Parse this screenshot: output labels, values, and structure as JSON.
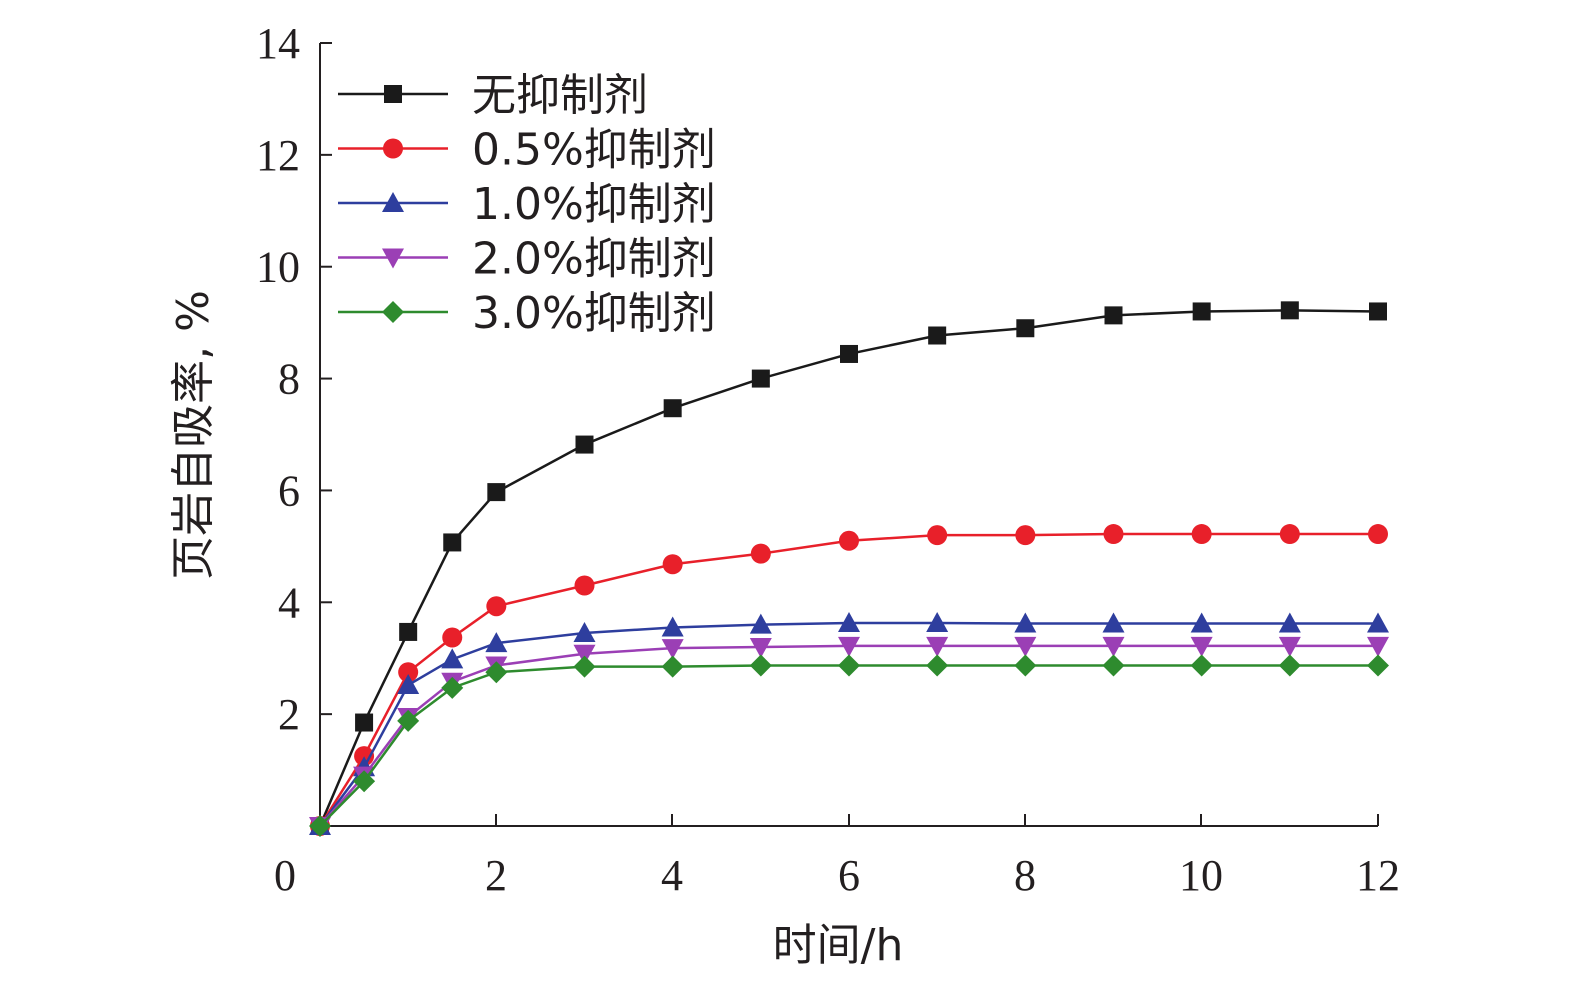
{
  "chart_data": {
    "type": "line",
    "title": "",
    "xlabel": "时间/h",
    "ylabel": "页岩自吸率, %",
    "xlim": [
      0,
      12
    ],
    "ylim": [
      0,
      14
    ],
    "x_ticks": [
      "0",
      "2",
      "4",
      "6",
      "8",
      "10",
      "12"
    ],
    "y_ticks": [
      "2",
      "4",
      "6",
      "8",
      "10",
      "12",
      "14"
    ],
    "grid": false,
    "legend_position": "top-left",
    "x": [
      0.4,
      0.9,
      1.4,
      1.9,
      2.4,
      3.4,
      4.4,
      5.4,
      6.4,
      7.4,
      8.4,
      9.4,
      10.4,
      11.4,
      12.4
    ],
    "x_values": [
      0,
      0.5,
      1,
      1.5,
      2,
      3,
      4,
      5,
      6,
      7,
      8,
      9,
      10,
      11,
      12
    ],
    "series": [
      {
        "name": "无抑制剂",
        "color": "#1a1a1a",
        "marker": "square",
        "values": [
          0,
          1.85,
          3.47,
          5.07,
          5.97,
          6.82,
          7.47,
          8.0,
          8.44,
          8.77,
          8.9,
          9.13,
          9.2,
          9.22,
          9.2
        ]
      },
      {
        "name": "0.5%抑制剂",
        "color": "#e8202a",
        "marker": "circle",
        "values": [
          0,
          1.25,
          2.75,
          3.37,
          3.93,
          4.3,
          4.68,
          4.87,
          5.1,
          5.2,
          5.2,
          5.22,
          5.22,
          5.22,
          5.22
        ]
      },
      {
        "name": "1.0%抑制剂",
        "color": "#2e3e9e",
        "marker": "triangle-up",
        "values": [
          0,
          1.05,
          2.52,
          2.98,
          3.27,
          3.45,
          3.55,
          3.6,
          3.63,
          3.63,
          3.62,
          3.62,
          3.62,
          3.62,
          3.62
        ]
      },
      {
        "name": "2.0%抑制剂",
        "color": "#9b3fb5",
        "marker": "triangle-down",
        "values": [
          0,
          0.9,
          1.95,
          2.58,
          2.87,
          3.08,
          3.18,
          3.2,
          3.22,
          3.22,
          3.22,
          3.22,
          3.22,
          3.22,
          3.22
        ]
      },
      {
        "name": "3.0%抑制剂",
        "color": "#2e8b2e",
        "marker": "diamond",
        "values": [
          0,
          0.8,
          1.88,
          2.47,
          2.75,
          2.85,
          2.85,
          2.87,
          2.87,
          2.87,
          2.87,
          2.87,
          2.87,
          2.87,
          2.87
        ]
      }
    ]
  }
}
